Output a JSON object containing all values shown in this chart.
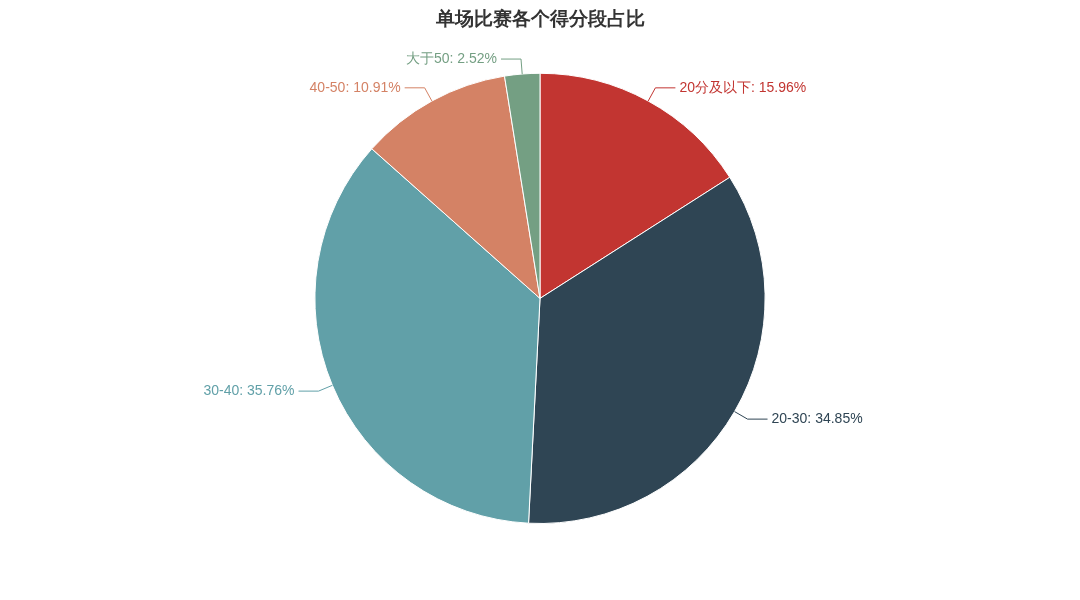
{
  "chart_data": {
    "type": "pie",
    "title": "单场比赛各个得分段占比",
    "categories": [
      "20分及以下",
      "20-30",
      "30-40",
      "40-50",
      "大于50"
    ],
    "values": [
      15.96,
      34.85,
      35.76,
      10.91,
      2.52
    ],
    "colors": [
      "#c23531",
      "#2f4554",
      "#61a0a8",
      "#d48265",
      "#749f83"
    ],
    "value_labels": [
      "15.96%",
      "34.85%",
      "35.76%",
      "10.91%",
      "2.52%"
    ],
    "legend": false
  }
}
